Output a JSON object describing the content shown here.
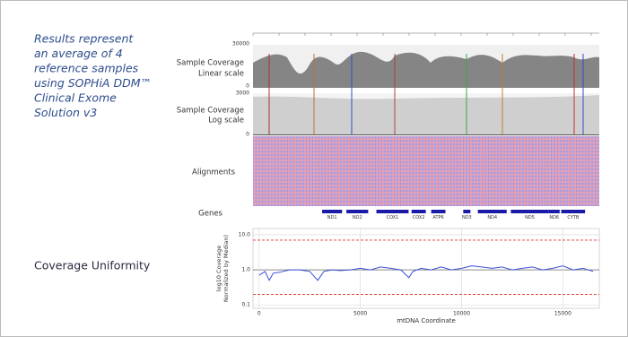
{
  "notes": {
    "lines": [
      "Results represent",
      "an average of 4",
      "reference samples",
      "using SOPHiA DDM™",
      "Clinical Exome",
      "Solution v3"
    ]
  },
  "igv": {
    "xlim": [
      0,
      16569
    ],
    "linear_label": [
      "Sample Coverage",
      "Linear scale"
    ],
    "linear_range": [
      0,
      30000
    ],
    "log_label": [
      "Sample Coverage",
      "Log scale"
    ],
    "log_range": [
      0,
      3000
    ],
    "alignments_label": "Alignments",
    "genes_label": "Genes",
    "gene_color": "#1a1aa8",
    "genes": [
      {
        "name": "ND1",
        "start": 3307,
        "end": 4262
      },
      {
        "name": "ND2",
        "start": 4470,
        "end": 5511
      },
      {
        "name": "COX1",
        "start": 5904,
        "end": 7445
      },
      {
        "name": "COX2",
        "start": 7586,
        "end": 8269
      },
      {
        "name": "ATP6",
        "start": 8527,
        "end": 9207
      },
      {
        "name": "ND3",
        "start": 10059,
        "end": 10404
      },
      {
        "name": "ND4",
        "start": 10760,
        "end": 12137
      },
      {
        "name": "ND5",
        "start": 12337,
        "end": 14148
      },
      {
        "name": "ND6",
        "start": 14149,
        "end": 14673
      },
      {
        "name": "CYTB",
        "start": 14747,
        "end": 15887
      }
    ]
  },
  "chart_data": {
    "type": "line",
    "title": "Coverage Uniformity",
    "xlabel": "mtDNA Coordinate",
    "ylabel": [
      "log10 Coverage",
      "Normalized by Median)"
    ],
    "x": [
      0,
      300,
      500,
      700,
      1000,
      1500,
      2000,
      2500,
      2900,
      3200,
      3600,
      4000,
      4500,
      5000,
      5500,
      6000,
      6500,
      7000,
      7400,
      7600,
      8000,
      8500,
      9000,
      9500,
      10000,
      10500,
      11000,
      11500,
      12000,
      12500,
      13000,
      13500,
      14000,
      14500,
      15000,
      15500,
      16000,
      16500
    ],
    "values": [
      0.7,
      0.9,
      0.5,
      0.8,
      0.85,
      1.0,
      1.0,
      0.9,
      0.5,
      0.9,
      1.0,
      0.95,
      1.0,
      1.1,
      1.0,
      1.2,
      1.1,
      1.0,
      0.6,
      0.9,
      1.1,
      1.0,
      1.2,
      1.0,
      1.1,
      1.3,
      1.2,
      1.1,
      1.2,
      1.0,
      1.1,
      1.2,
      1.0,
      1.1,
      1.3,
      1.0,
      1.1,
      0.9
    ],
    "color": "#3a4fd6",
    "xlim": [
      -300,
      16800
    ],
    "xticks": [
      0,
      5000,
      10000,
      15000
    ],
    "ylim": [
      0.08,
      15
    ],
    "yticks": [
      {
        "value": 10,
        "label": "10.0"
      },
      {
        "value": 1,
        "label": "1.0"
      },
      0.1
    ],
    "log_y": true,
    "grid": true,
    "reference_lines": [
      7,
      0.2
    ],
    "reference_color": "#e0302a"
  }
}
